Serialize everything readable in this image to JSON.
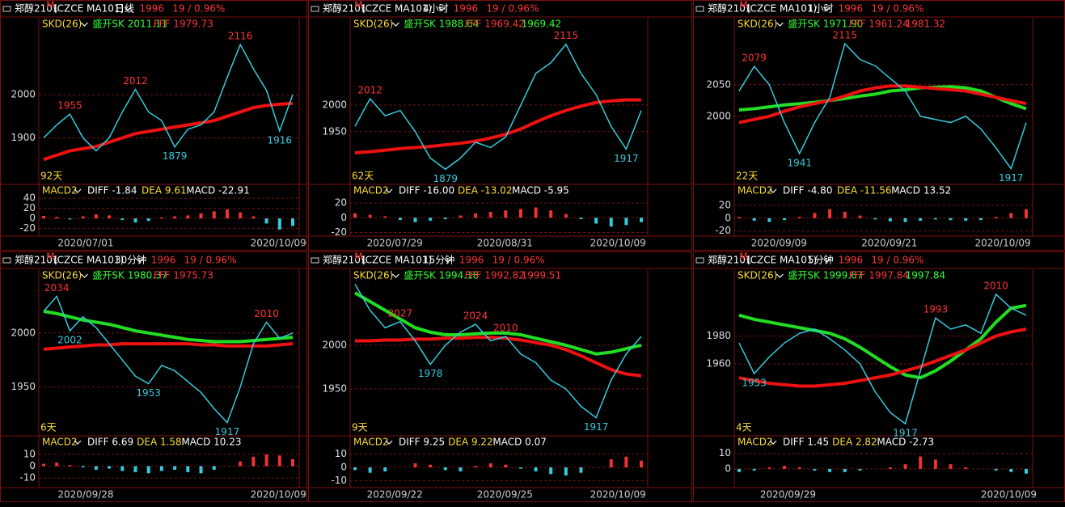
{
  "panels": [
    {
      "header": {
        "symbol": "郑醇2101",
        "flag": "M",
        "code": "(CZCE MA101)",
        "period": "日线",
        "price": 1996,
        "change": "19 / 0.96%"
      },
      "indicator": {
        "name": "SKD(26)",
        "items": [
          {
            "text": "盛开SK 2011.11",
            "color": "#33ff33"
          },
          {
            "text": "FFF 1979.73",
            "color": "#ff3333"
          }
        ]
      },
      "ylim": [
        1798,
        2178
      ],
      "yticks": [
        1900,
        2000
      ],
      "days": "92天",
      "close": [
        1900,
        1930,
        1955,
        1900,
        1870,
        1900,
        1960,
        2012,
        1960,
        1940,
        1879,
        1920,
        1930,
        1960,
        2040,
        2116,
        2060,
        2010,
        1916,
        2000
      ],
      "ma_red": [
        1850,
        1860,
        1870,
        1875,
        1880,
        1890,
        1900,
        1910,
        1915,
        1920,
        1925,
        1930,
        1935,
        1940,
        1950,
        1960,
        1970,
        1975,
        1978,
        1980
      ],
      "annotations": [
        {
          "value": 1955,
          "color": "#ff3333"
        },
        {
          "value": 2012,
          "color": "#ff3333"
        },
        {
          "value": 2116,
          "color": "#ff3333"
        },
        {
          "value": 1879,
          "color": "#33ccdd"
        },
        {
          "value": 1916,
          "color": "#33ccdd"
        }
      ],
      "macd": {
        "name": "MACD2",
        "diff": "DIFF -1.84",
        "dea": "DEA 9.61",
        "macd": "MACD -22.91",
        "ylim": [
          -35,
          45
        ],
        "yticks": [
          -20,
          0,
          20,
          40
        ],
        "bars": [
          5,
          3,
          -2,
          4,
          8,
          6,
          -3,
          -8,
          -5,
          2,
          4,
          6,
          10,
          14,
          18,
          12,
          4,
          -10,
          -22,
          -15
        ]
      },
      "dates": [
        "2020/07/01",
        "2020/10/09"
      ]
    },
    {
      "header": {
        "symbol": "郑醇2101",
        "flag": "M",
        "code": "(CZCE MA101)",
        "period": "4小时",
        "price": 1996,
        "change": "19 / 0.96%"
      },
      "indicator": {
        "name": "SKD(26)",
        "items": [
          {
            "text": "盛开SK 1988.64",
            "color": "#33ff33"
          },
          {
            "text": "FFF 1969.42",
            "color": "#ff3333"
          },
          {
            "text": "1969.42",
            "color": "#33ff33"
          }
        ]
      },
      "ylim": [
        1855,
        2165
      ],
      "yticks": [
        1950,
        2000
      ],
      "days": "62天",
      "close": [
        1960,
        2012,
        1980,
        1990,
        1950,
        1900,
        1879,
        1900,
        1930,
        1920,
        1940,
        2000,
        2060,
        2080,
        2115,
        2060,
        2020,
        1960,
        1917,
        1990
      ],
      "ma_red": [
        1910,
        1912,
        1915,
        1918,
        1920,
        1922,
        1925,
        1928,
        1932,
        1938,
        1945,
        1955,
        1968,
        1980,
        1990,
        1998,
        2005,
        2008,
        2010,
        2010
      ],
      "annotations": [
        {
          "value": 2012,
          "color": "#ff3333"
        },
        {
          "value": 2115,
          "color": "#ff3333"
        },
        {
          "value": 1879,
          "color": "#33ccdd"
        },
        {
          "value": 1917,
          "color": "#33ccdd"
        }
      ],
      "macd": {
        "name": "MACD2",
        "diff": "DIFF -16.00",
        "dea": "DEA -13.02",
        "macd": "MACD -5.95",
        "ylim": [
          -25,
          30
        ],
        "yticks": [
          -20,
          0,
          20
        ],
        "bars": [
          6,
          4,
          2,
          -3,
          -6,
          -4,
          -2,
          3,
          6,
          8,
          10,
          12,
          14,
          10,
          5,
          -2,
          -8,
          -12,
          -10,
          -6
        ]
      },
      "dates": [
        "2020/07/29",
        "2020/08/31",
        "2020/10/09"
      ]
    },
    {
      "header": {
        "symbol": "郑醇2101",
        "flag": "M",
        "code": "(CZCE MA101)",
        "period": "1小时",
        "price": 1996,
        "change": "19 / 0.96%"
      },
      "indicator": {
        "name": "SKD(26)",
        "items": [
          {
            "text": "盛开SK 1971.90",
            "color": "#33ff33"
          },
          {
            "text": "FFF 1961.24",
            "color": "#ff3333"
          },
          {
            "text": "1981.32",
            "color": "#ff3333"
          }
        ]
      },
      "ylim": [
        1896,
        2156
      ],
      "yticks": [
        2000,
        2050
      ],
      "days": "22天",
      "close": [
        2040,
        2079,
        2050,
        1990,
        1941,
        1990,
        2030,
        2115,
        2090,
        2080,
        2060,
        2040,
        2000,
        1995,
        1990,
        2000,
        1980,
        1950,
        1917,
        1990
      ],
      "ma_red": [
        1990,
        1995,
        2000,
        2008,
        2015,
        2020,
        2025,
        2032,
        2040,
        2045,
        2048,
        2048,
        2046,
        2044,
        2042,
        2040,
        2035,
        2030,
        2025,
        2020
      ],
      "ma_green": [
        2010,
        2012,
        2015,
        2018,
        2020,
        2022,
        2025,
        2028,
        2032,
        2035,
        2040,
        2042,
        2045,
        2046,
        2047,
        2045,
        2040,
        2030,
        2020,
        2012
      ],
      "annotations": [
        {
          "value": 2079,
          "color": "#ff3333"
        },
        {
          "value": 2115,
          "color": "#ff3333"
        },
        {
          "value": 1941,
          "color": "#33ccdd"
        },
        {
          "value": 1917,
          "color": "#33ccdd"
        }
      ],
      "macd": {
        "name": "MACD2",
        "diff": "DIFF -4.80",
        "dea": "DEA -11.56",
        "macd": "MACD 13.52",
        "ylim": [
          -28,
          35
        ],
        "yticks": [
          -20,
          0,
          20
        ],
        "bars": [
          2,
          -4,
          -6,
          -3,
          2,
          8,
          14,
          10,
          4,
          -2,
          -5,
          -6,
          -4,
          -2,
          -3,
          -4,
          -3,
          2,
          8,
          14
        ]
      },
      "dates": [
        "2020/09/09",
        "2020/09/21",
        "2020/10/09"
      ]
    },
    {
      "header": {
        "symbol": "郑醇2101",
        "flag": "M",
        "code": "(CZCE MA101)",
        "period": "30分钟",
        "price": 1996,
        "change": "19 / 0.96%"
      },
      "indicator": {
        "name": "SKD(26)",
        "items": [
          {
            "text": "盛开SK 1980.37",
            "color": "#33ff33"
          },
          {
            "text": "FFF 1975.73",
            "color": "#ff3333"
          }
        ]
      },
      "ylim": [
        1907,
        2059
      ],
      "yticks": [
        1950,
        2000
      ],
      "days": "6天",
      "close": [
        2020,
        2034,
        2002,
        2015,
        2005,
        1990,
        1975,
        1960,
        1953,
        1970,
        1965,
        1955,
        1945,
        1930,
        1917,
        1950,
        1990,
        2010,
        1995,
        2000
      ],
      "ma_red": [
        1985,
        1986,
        1987,
        1988,
        1989,
        1989,
        1990,
        1990,
        1990,
        1990,
        1990,
        1990,
        1989,
        1989,
        1988,
        1988,
        1988,
        1988,
        1989,
        1990
      ],
      "ma_green": [
        2020,
        2018,
        2015,
        2012,
        2010,
        2008,
        2005,
        2002,
        2000,
        1998,
        1996,
        1994,
        1993,
        1992,
        1992,
        1992,
        1993,
        1994,
        1995,
        1996
      ],
      "annotations": [
        {
          "value": 2034,
          "color": "#ff3333"
        },
        {
          "value": 2002,
          "color": "#33ccdd"
        },
        {
          "value": 1953,
          "color": "#33ccdd"
        },
        {
          "value": 1917,
          "color": "#33ccdd"
        },
        {
          "value": 2010,
          "color": "#ff3333"
        }
      ],
      "macd": {
        "name": "MACD2",
        "diff": "DIFF 6.69",
        "dea": "DEA 1.58",
        "macd": "MACD 10.23",
        "ylim": [
          -18,
          16
        ],
        "yticks": [
          -10,
          0,
          10
        ],
        "bars": [
          2,
          3,
          1,
          -1,
          -3,
          -2,
          -4,
          -5,
          -6,
          -4,
          -3,
          -5,
          -6,
          -3,
          0,
          4,
          8,
          10,
          9,
          6
        ]
      },
      "dates": [
        "2020/09/28",
        "2020/10/09"
      ]
    },
    {
      "header": {
        "symbol": "郑醇2101",
        "flag": "M",
        "code": "(CZCE MA101)",
        "period": "15分钟",
        "price": 1996,
        "change": "19 / 0.96%"
      },
      "indicator": {
        "name": "SKD(26)",
        "items": [
          {
            "text": "盛开SK 1994.18",
            "color": "#33ff33"
          },
          {
            "text": "FFF 1992.82",
            "color": "#ff3333"
          },
          {
            "text": "1999.51",
            "color": "#ff3333"
          }
        ]
      },
      "ylim": [
        1899,
        2087
      ],
      "yticks": [
        1950,
        2000
      ],
      "days": "9天",
      "close": [
        2070,
        2040,
        2020,
        2027,
        2005,
        1978,
        2000,
        2015,
        2024,
        2005,
        2010,
        1990,
        1980,
        1960,
        1950,
        1930,
        1917,
        1960,
        1990,
        2010
      ],
      "ma_red": [
        2005,
        2005,
        2006,
        2006,
        2007,
        2007,
        2008,
        2008,
        2009,
        2009,
        2008,
        2006,
        2003,
        2000,
        1995,
        1988,
        1980,
        1972,
        1967,
        1965
      ],
      "ma_green": [
        2060,
        2050,
        2040,
        2030,
        2020,
        2015,
        2012,
        2012,
        2013,
        2014,
        2014,
        2012,
        2008,
        2004,
        2000,
        1995,
        1990,
        1992,
        1996,
        2000
      ],
      "annotations": [
        {
          "value": 2027,
          "color": "#ff3333"
        },
        {
          "value": 2024,
          "color": "#ff3333"
        },
        {
          "value": 1978,
          "color": "#33ccdd"
        },
        {
          "value": 1917,
          "color": "#33ccdd"
        },
        {
          "value": 2010,
          "color": "#ff3333"
        }
      ],
      "macd": {
        "name": "MACD2",
        "diff": "DIFF 9.25",
        "dea": "DEA 9.22",
        "macd": "MACD 0.07",
        "ylim": [
          -15,
          15
        ],
        "yticks": [
          -10,
          0,
          10
        ],
        "bars": [
          -2,
          -4,
          -3,
          0,
          3,
          2,
          -2,
          -3,
          1,
          3,
          2,
          -1,
          -3,
          -5,
          -6,
          -4,
          0,
          6,
          8,
          5
        ]
      },
      "dates": [
        "2020/09/22",
        "2020/09/25",
        "2020/10/09"
      ]
    },
    {
      "header": {
        "symbol": "郑醇2101",
        "flag": "M",
        "code": "(CZCE MA101)",
        "period": "5分钟",
        "price": 1996,
        "change": "19 / 0.96%"
      },
      "indicator": {
        "name": "SKD(26)",
        "items": [
          {
            "text": "盛开SK 1999.67",
            "color": "#33ff33"
          },
          {
            "text": "FFF 1997.84",
            "color": "#ff3333"
          },
          {
            "text": "1997.84",
            "color": "#33ff33"
          }
        ]
      },
      "ylim": [
        1910,
        2028
      ],
      "yticks": [
        1960,
        1980
      ],
      "days": "4天",
      "close": [
        1975,
        1953,
        1965,
        1975,
        1982,
        1985,
        1978,
        1970,
        1960,
        1940,
        1925,
        1917,
        1955,
        1993,
        1985,
        1988,
        1982,
        2010,
        2000,
        1995
      ],
      "ma_red": [
        1950,
        1948,
        1946,
        1945,
        1944,
        1944,
        1945,
        1946,
        1948,
        1950,
        1952,
        1955,
        1958,
        1962,
        1966,
        1970,
        1975,
        1980,
        1983,
        1985
      ],
      "ma_green": [
        1995,
        1992,
        1990,
        1988,
        1986,
        1984,
        1982,
        1978,
        1972,
        1965,
        1958,
        1952,
        1950,
        1955,
        1962,
        1970,
        1978,
        1990,
        2000,
        2002
      ],
      "annotations": [
        {
          "value": 1953,
          "color": "#33ccdd"
        },
        {
          "value": 1993,
          "color": "#ff3333"
        },
        {
          "value": 1917,
          "color": "#33ccdd"
        },
        {
          "value": 2010,
          "color": "#ff3333"
        }
      ],
      "macd": {
        "name": "MACD2",
        "diff": "DIFF 1.45",
        "dea": "DEA 2.82",
        "macd": "MACD -2.73",
        "ylim": [
          -12,
          14
        ],
        "yticks": [
          0,
          10
        ],
        "bars": [
          -2,
          -1,
          1,
          2,
          1,
          -1,
          -2,
          -2,
          -1,
          0,
          1,
          3,
          8,
          6,
          3,
          1,
          0,
          -1,
          -2,
          -3
        ]
      },
      "dates": [
        "2020/09/29",
        "2020/10/09"
      ]
    }
  ]
}
